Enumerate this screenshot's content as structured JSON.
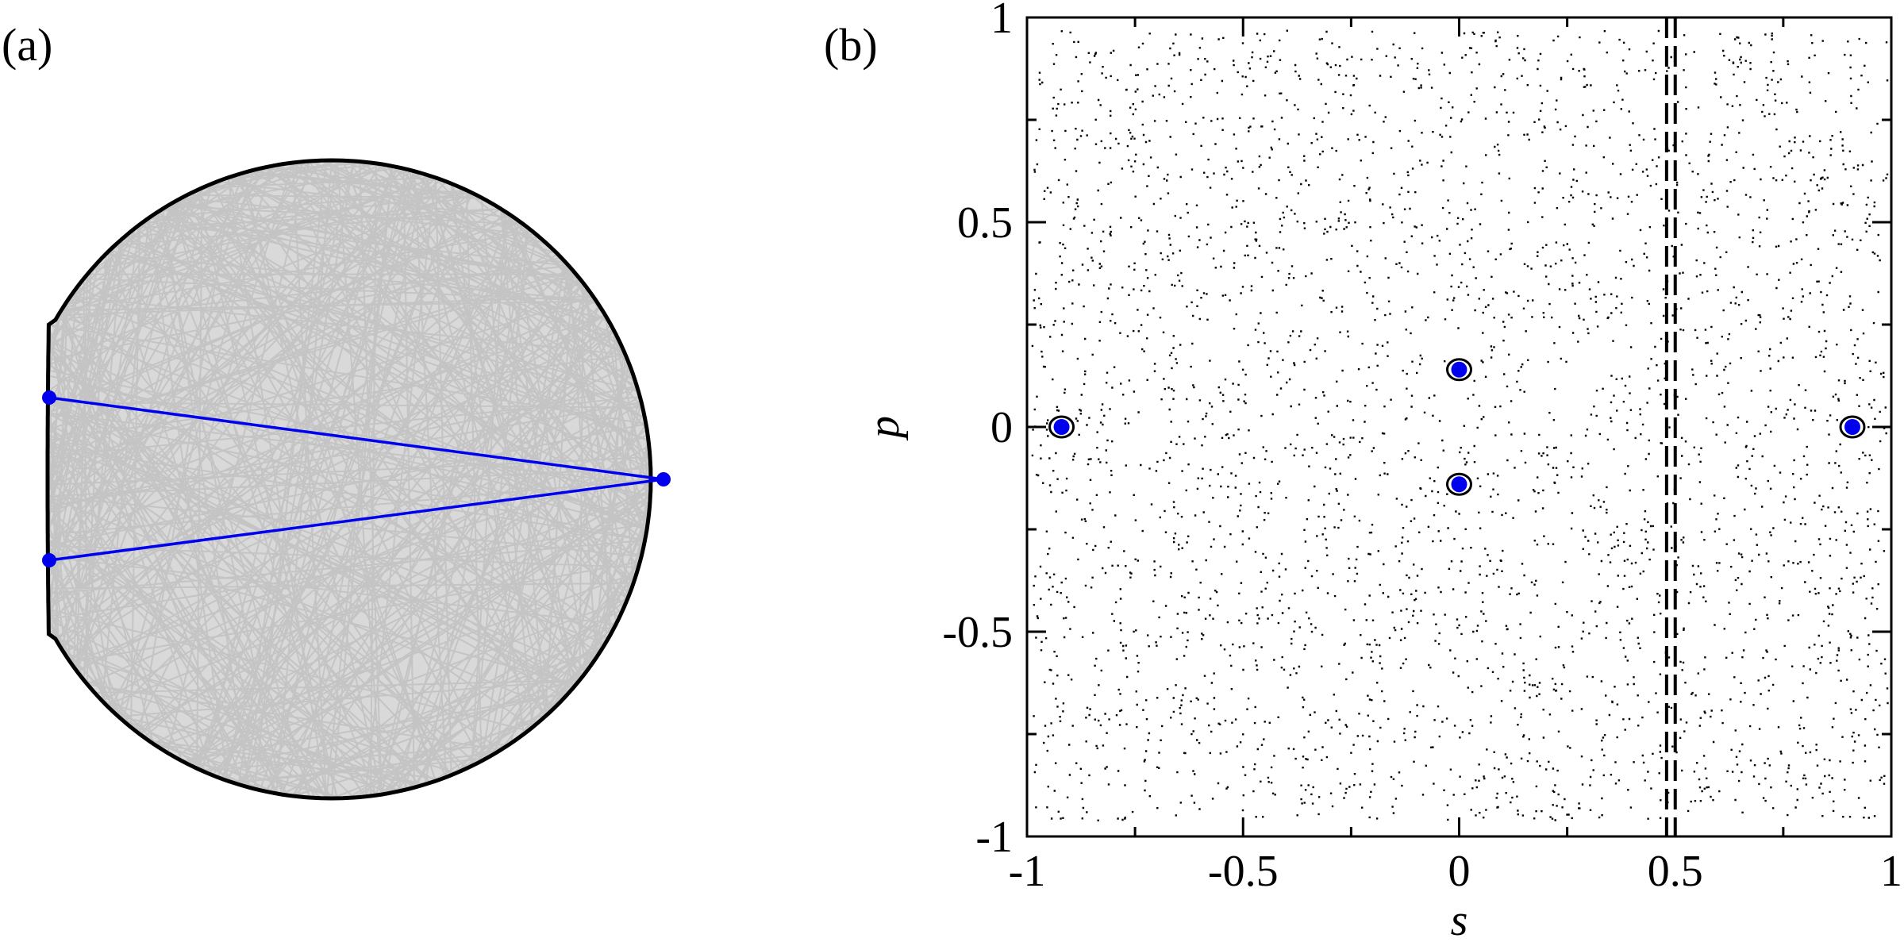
{
  "panels": {
    "a": {
      "tag": "(a)"
    },
    "b": {
      "tag": "(b)"
    }
  },
  "colors": {
    "orbit_line": "#0000ee",
    "orbit_point": "#0000ee",
    "trajectory_fill": "#d9d9d9",
    "boundary": "#000000",
    "scatter": "#000000"
  },
  "chart_data": [
    {
      "type": "diagram",
      "panel": "(a)",
      "boundary_shape": "circle-like billiard with flattened left side",
      "trajectory_style": "dense light-gray chaotic chords",
      "orbit": {
        "points": [
          "left-upper",
          "right-middle",
          "left-lower"
        ],
        "segments": 2
      }
    },
    {
      "type": "scatter",
      "panel": "(b)",
      "xlabel": "s",
      "ylabel": "p",
      "xlim": [
        -1,
        1
      ],
      "ylim": [
        -1,
        1
      ],
      "xticks": [
        "-1",
        "-0.5",
        "0",
        "0.5",
        "1"
      ],
      "yticks": [
        "-1",
        "-0.5",
        "0",
        "0.5",
        "1"
      ],
      "grid": false,
      "chaotic_sea": {
        "style": "black dots",
        "approx_count": 3400,
        "x_range": [
          -1,
          1
        ],
        "y_range": [
          -0.96,
          0.97
        ]
      },
      "periodic_orbit_points": [
        {
          "s": -0.92,
          "p": 0.0
        },
        {
          "s": 0.0,
          "p": 0.14
        },
        {
          "s": 0.0,
          "p": -0.14
        },
        {
          "s": 0.91,
          "p": 0.0
        }
      ],
      "islands": [
        {
          "s": -0.92,
          "p": 0.0
        },
        {
          "s": 0.0,
          "p": 0.14
        },
        {
          "s": 0.0,
          "p": -0.14
        },
        {
          "s": 0.91,
          "p": 0.0
        }
      ],
      "vertical_dashed_lines": [
        0.48,
        0.5
      ]
    }
  ]
}
